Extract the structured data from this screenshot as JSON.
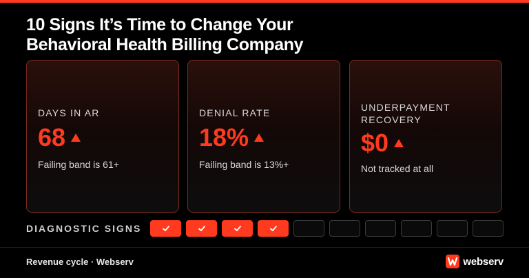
{
  "header": {
    "title_line1": "10 Signs It’s Time to Change Your",
    "title_line2": "Behavioral Health Billing Company"
  },
  "cards": [
    {
      "label": "DAYS IN AR",
      "value": "68",
      "note": "Failing band is 61+"
    },
    {
      "label_line1": "DENIAL RATE",
      "value": "18%",
      "note": "Failing band is 13%+"
    },
    {
      "label_line1": "UNDERPAYMENT",
      "label_line2": "RECOVERY",
      "value": "$0",
      "note": "Not tracked at all"
    }
  ],
  "diagnostic": {
    "label": "DIAGNOSTIC SIGNS",
    "total": 10,
    "checked": 4
  },
  "footer": {
    "left_text": "Revenue cycle · Webserv",
    "logo_text": "webserv"
  },
  "colors": {
    "accent": "#ff3a1f",
    "background": "#000000"
  },
  "icons": {
    "trend": "triangle-up-icon",
    "check": "checkmark-icon",
    "logo": "webserv-w-icon"
  }
}
